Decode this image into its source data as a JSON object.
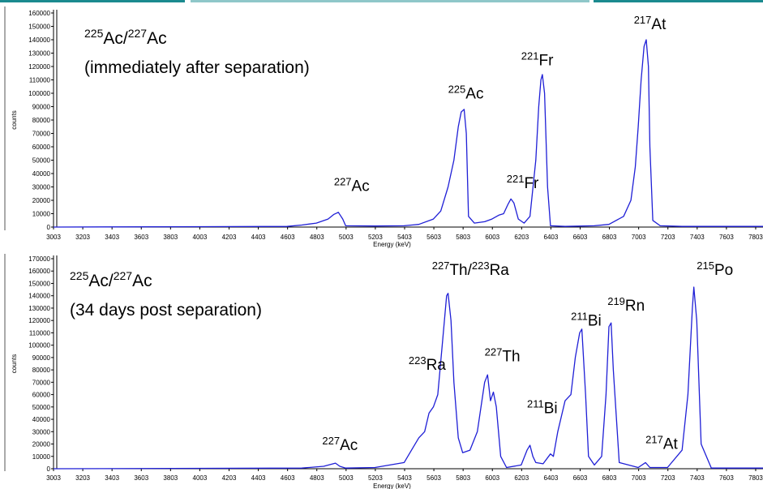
{
  "chart_data": [
    {
      "type": "line",
      "line_color": "#1f1fd6",
      "ylabel": "counts",
      "xlabel": "Energy (keV)",
      "xlim": [
        3003,
        7853
      ],
      "ylim": [
        0,
        160000
      ],
      "x_ticks": [
        "3003",
        "3203",
        "3403",
        "3603",
        "3803",
        "4003",
        "4203",
        "4403",
        "4603",
        "4803",
        "5003",
        "5203",
        "5403",
        "5603",
        "5803",
        "6003",
        "6203",
        "6403",
        "6603",
        "6803",
        "7003",
        "7203",
        "7403",
        "7603",
        "7803"
      ],
      "y_ticks": [
        "0",
        "10000",
        "20000",
        "30000",
        "40000",
        "50000",
        "60000",
        "70000",
        "80000",
        "90000",
        "100000",
        "110000",
        "120000",
        "130000",
        "140000",
        "150000",
        "160000"
      ],
      "annotation": {
        "line1_sup_a": "225",
        "line1_a": "Ac/",
        "line1_sup_b": "227",
        "line1_b": "Ac",
        "line2": "(immediately after separation)"
      },
      "peak_labels": [
        {
          "mass": "227",
          "element": "Ac",
          "x": 4920,
          "y": 27000
        },
        {
          "mass": "225",
          "element": "Ac",
          "x": 5700,
          "y": 96000
        },
        {
          "mass": "221",
          "element": "Fr",
          "x": 6100,
          "y": 29000
        },
        {
          "mass": "221",
          "element": "Fr",
          "x": 6200,
          "y": 121000
        },
        {
          "mass": "217",
          "element": "At",
          "x": 6970,
          "y": 148000
        }
      ],
      "x": [
        3003,
        4600,
        4700,
        4800,
        4880,
        4920,
        4950,
        4980,
        5000,
        5200,
        5400,
        5500,
        5600,
        5650,
        5700,
        5740,
        5770,
        5790,
        5810,
        5825,
        5840,
        5880,
        5950,
        6000,
        6050,
        6080,
        6110,
        6130,
        6150,
        6180,
        6220,
        6260,
        6300,
        6320,
        6335,
        6345,
        6360,
        6380,
        6400,
        6500,
        6700,
        6800,
        6900,
        6950,
        6980,
        7000,
        7020,
        7040,
        7055,
        7070,
        7080,
        7100,
        7150,
        7300,
        7853
      ],
      "y": [
        0,
        500,
        1500,
        3000,
        6000,
        9500,
        11000,
        6000,
        1000,
        800,
        1000,
        2000,
        6000,
        12000,
        30000,
        50000,
        75000,
        86000,
        88000,
        70000,
        8000,
        3000,
        4000,
        6000,
        9000,
        10000,
        17000,
        21000,
        18000,
        6000,
        3000,
        8000,
        50000,
        90000,
        110000,
        114000,
        100000,
        30000,
        1000,
        500,
        1000,
        2000,
        8000,
        20000,
        45000,
        75000,
        110000,
        135000,
        140000,
        120000,
        60000,
        5000,
        1000,
        500,
        500
      ]
    },
    {
      "type": "line",
      "line_color": "#1f1fd6",
      "ylabel": "counts",
      "xlabel": "Energy (keV)",
      "xlim": [
        3003,
        7853
      ],
      "ylim": [
        0,
        170000
      ],
      "x_ticks": [
        "3003",
        "3203",
        "3403",
        "3603",
        "3803",
        "4003",
        "4203",
        "4403",
        "4603",
        "4803",
        "5003",
        "5203",
        "5403",
        "5603",
        "5803",
        "6003",
        "6203",
        "6403",
        "6603",
        "6803",
        "7003",
        "7203",
        "7403",
        "7603",
        "7803"
      ],
      "y_ticks": [
        "0",
        "10000",
        "20000",
        "30000",
        "40000",
        "50000",
        "60000",
        "70000",
        "80000",
        "90000",
        "100000",
        "110000",
        "120000",
        "130000",
        "140000",
        "150000",
        "160000",
        "170000"
      ],
      "annotation": {
        "line1_sup_a": "225",
        "line1_a": "Ac/",
        "line1_sup_b": "227",
        "line1_b": "Ac",
        "line2": "(34 days post separation)"
      },
      "peak_labels": [
        {
          "mass": "227",
          "element": "Ac",
          "x": 4840,
          "y": 15000
        },
        {
          "mass": "223",
          "element": "Ra",
          "x": 5430,
          "y": 80000
        },
        {
          "mass": "227",
          "element": "Th/",
          "mass2": "223",
          "element2": "Ra",
          "x": 5590,
          "y": 157000
        },
        {
          "mass": "227",
          "element": "Th",
          "x": 5950,
          "y": 87000
        },
        {
          "mass": "211",
          "element": "Bi",
          "x": 6240,
          "y": 45000
        },
        {
          "mass": "211",
          "element": "Bi",
          "x": 6540,
          "y": 116000
        },
        {
          "mass": "219",
          "element": "Rn",
          "x": 6790,
          "y": 128000
        },
        {
          "mass": "217",
          "element": "At",
          "x": 7050,
          "y": 16000
        },
        {
          "mass": "215",
          "element": "Po",
          "x": 7400,
          "y": 157000
        }
      ],
      "x": [
        3003,
        4700,
        4850,
        4930,
        4960,
        5000,
        5200,
        5400,
        5450,
        5500,
        5540,
        5570,
        5600,
        5630,
        5660,
        5690,
        5700,
        5720,
        5740,
        5770,
        5800,
        5850,
        5900,
        5950,
        5970,
        5990,
        6010,
        6030,
        6060,
        6100,
        6200,
        6240,
        6260,
        6280,
        6300,
        6350,
        6400,
        6420,
        6450,
        6500,
        6540,
        6570,
        6600,
        6615,
        6640,
        6660,
        6700,
        6750,
        6780,
        6800,
        6815,
        6830,
        6870,
        7000,
        7050,
        7080,
        7200,
        7300,
        7340,
        7370,
        7380,
        7400,
        7430,
        7500,
        7853
      ],
      "y": [
        0,
        500,
        2000,
        4500,
        2000,
        500,
        1000,
        5000,
        15000,
        25000,
        30000,
        45000,
        50000,
        60000,
        100000,
        140000,
        142000,
        120000,
        70000,
        25000,
        13000,
        15000,
        30000,
        70000,
        76000,
        55000,
        62000,
        50000,
        10000,
        1000,
        3000,
        15000,
        19000,
        10000,
        5000,
        4000,
        12000,
        10000,
        30000,
        55000,
        60000,
        90000,
        110000,
        113000,
        60000,
        10000,
        3000,
        10000,
        60000,
        115000,
        118000,
        80000,
        5000,
        1000,
        5000,
        1000,
        1000,
        15000,
        60000,
        130000,
        147000,
        120000,
        20000,
        500,
        500
      ]
    }
  ]
}
